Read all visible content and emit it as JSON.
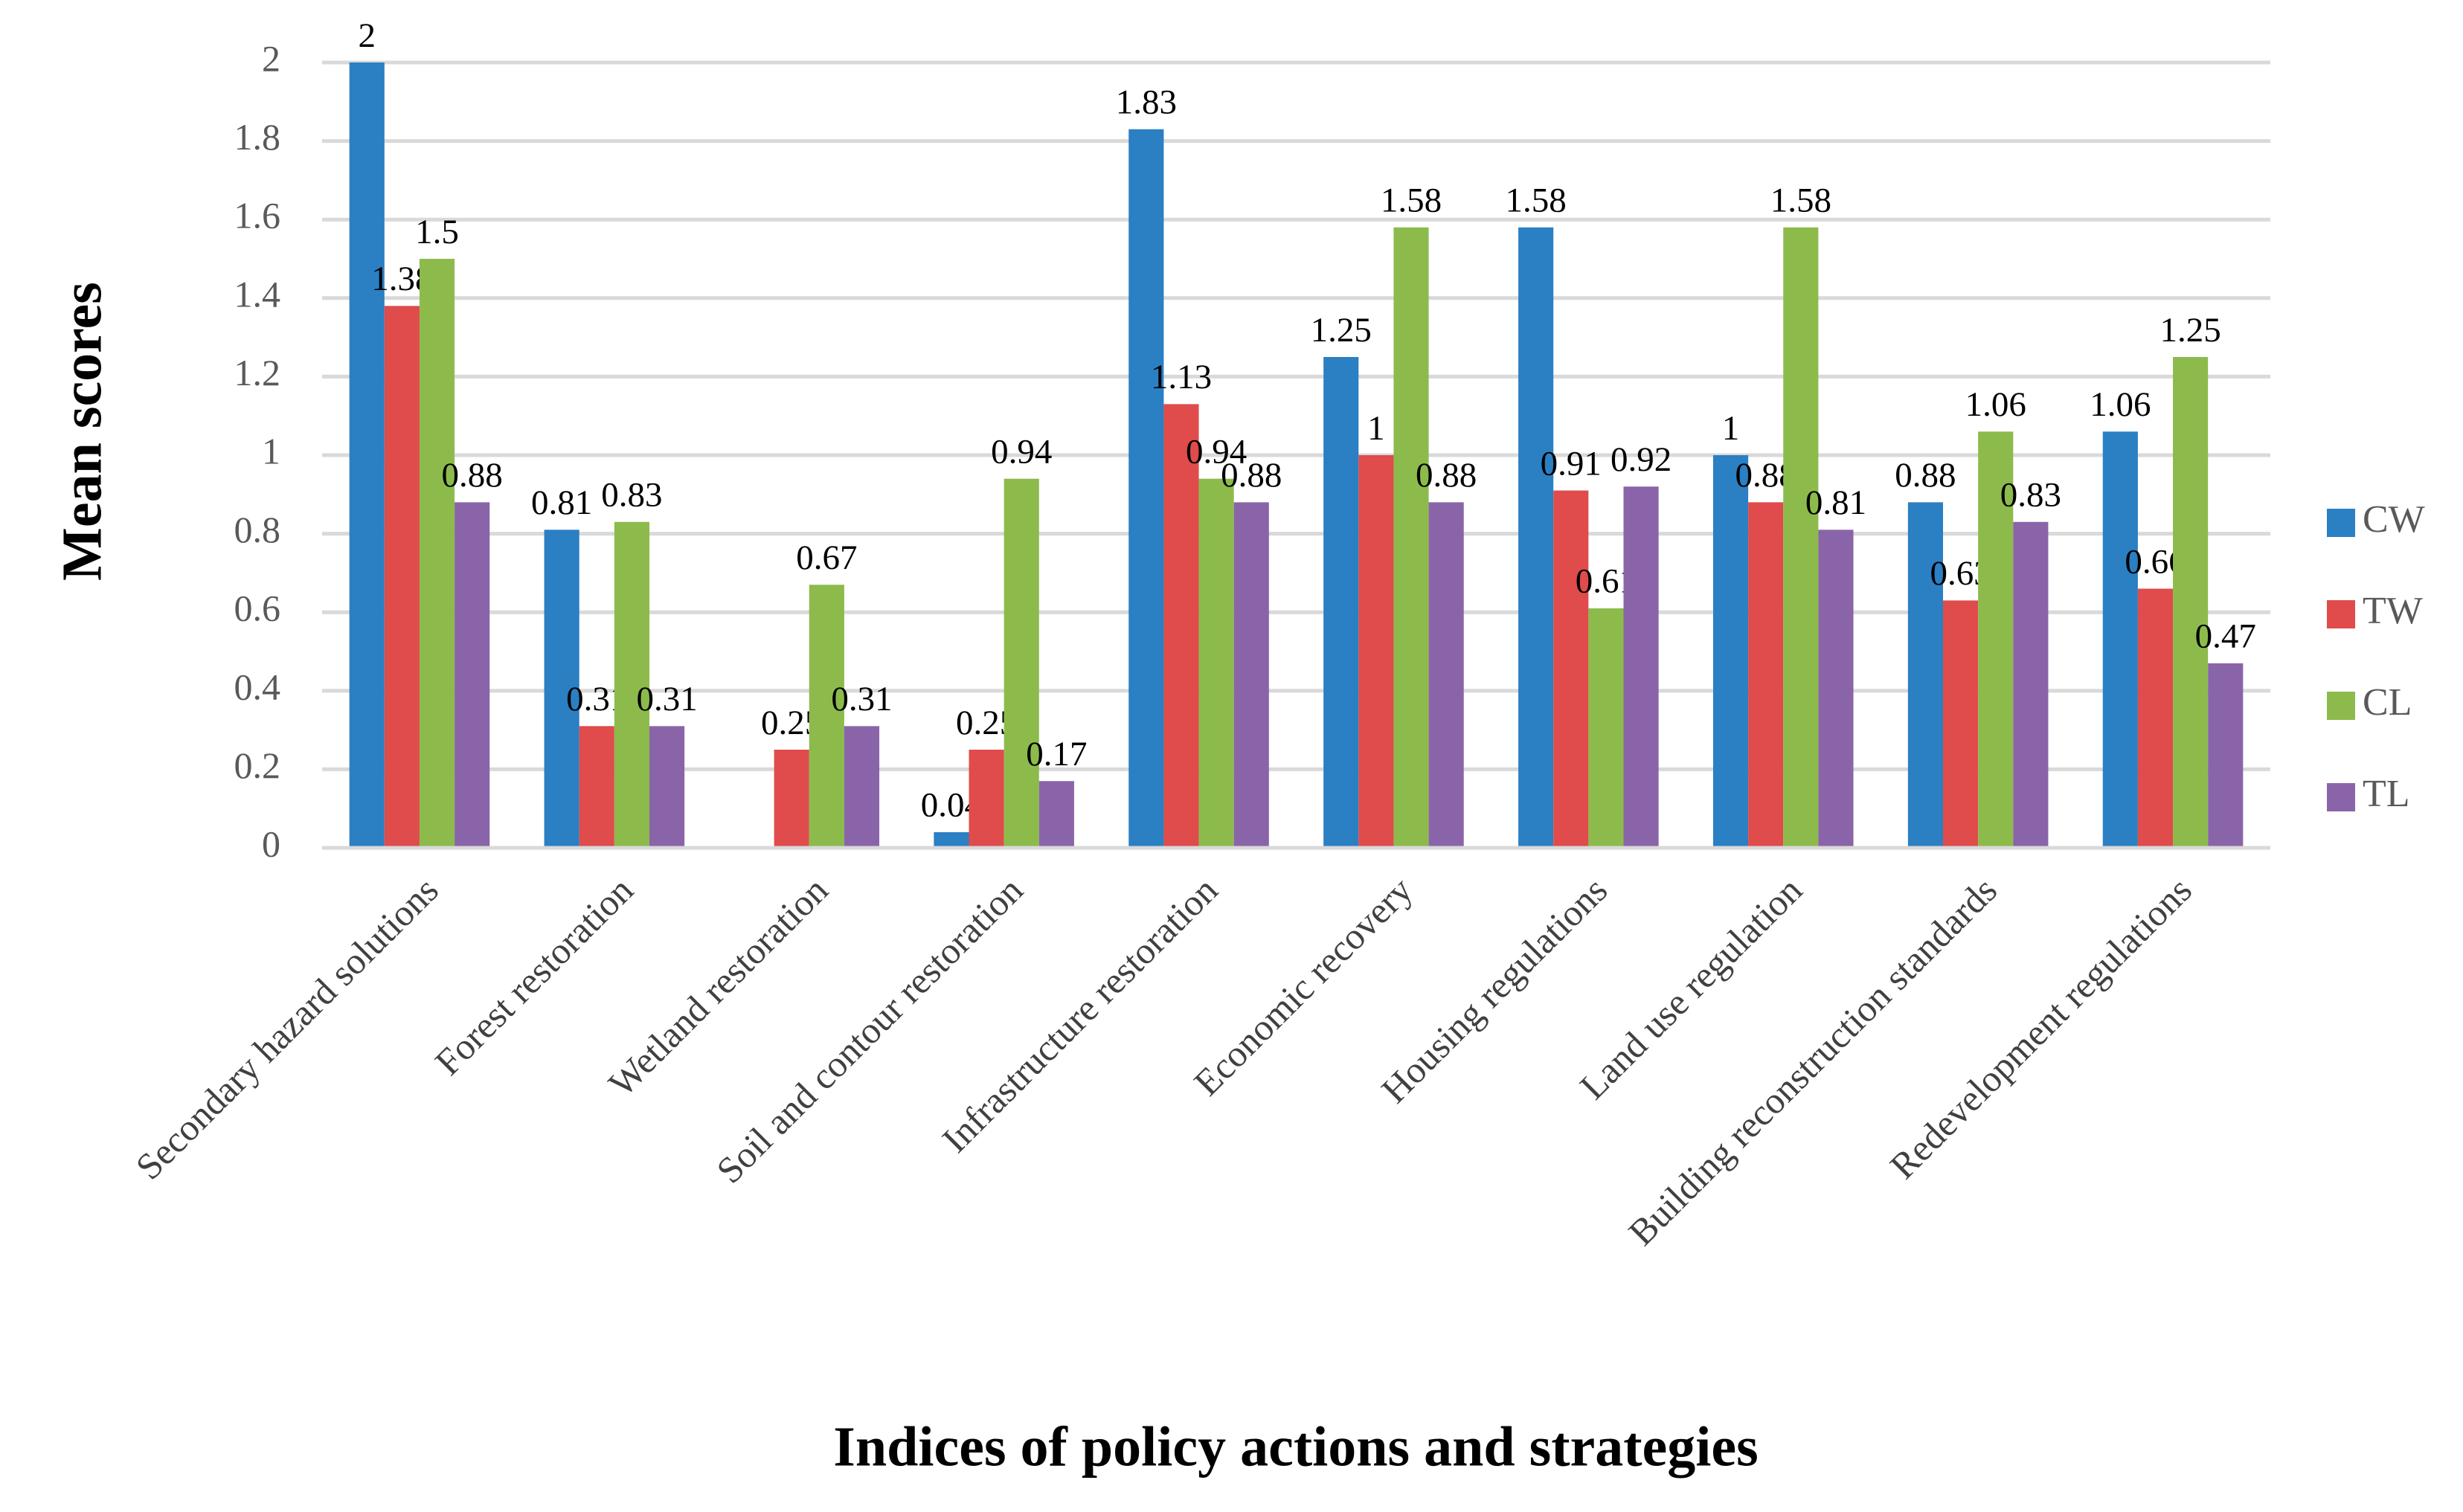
{
  "chart_data": {
    "type": "bar",
    "x_label": "Indices of policy actions and strategies",
    "y_label": "Mean scores",
    "categories": [
      "Secondary hazard solutions",
      "Forest restoration",
      "Wetland restoration",
      "Soil and contour restoration",
      "Infrastructure restoration",
      "Economic recovery",
      "Housing regulations",
      "Land use regulation",
      "Building reconstruction standards",
      "Redevelopment regulations"
    ],
    "series": [
      {
        "name": "CW",
        "color": "#2b7fc3",
        "values": [
          2,
          0.81,
          null,
          0.04,
          1.83,
          1.25,
          1.58,
          1,
          0.88,
          1.06
        ]
      },
      {
        "name": "TW",
        "color": "#e04b4b",
        "values": [
          1.38,
          0.31,
          0.25,
          0.25,
          1.13,
          1,
          0.91,
          0.88,
          0.63,
          0.66
        ]
      },
      {
        "name": "CL",
        "color": "#8cbb4c",
        "values": [
          1.5,
          0.83,
          0.67,
          0.94,
          0.94,
          1.58,
          0.61,
          1.58,
          1.06,
          1.25
        ]
      },
      {
        "name": "TL",
        "color": "#8a64a8",
        "values": [
          0.88,
          0.31,
          0.31,
          0.17,
          0.88,
          0.88,
          0.92,
          0.81,
          0.83,
          0.47
        ]
      }
    ],
    "ylim": [
      0,
      2
    ],
    "yticks": [
      0,
      0.2,
      0.4,
      0.6,
      0.8,
      1,
      1.2,
      1.4,
      1.6,
      1.8,
      2
    ],
    "grid": true,
    "legend": "right"
  }
}
